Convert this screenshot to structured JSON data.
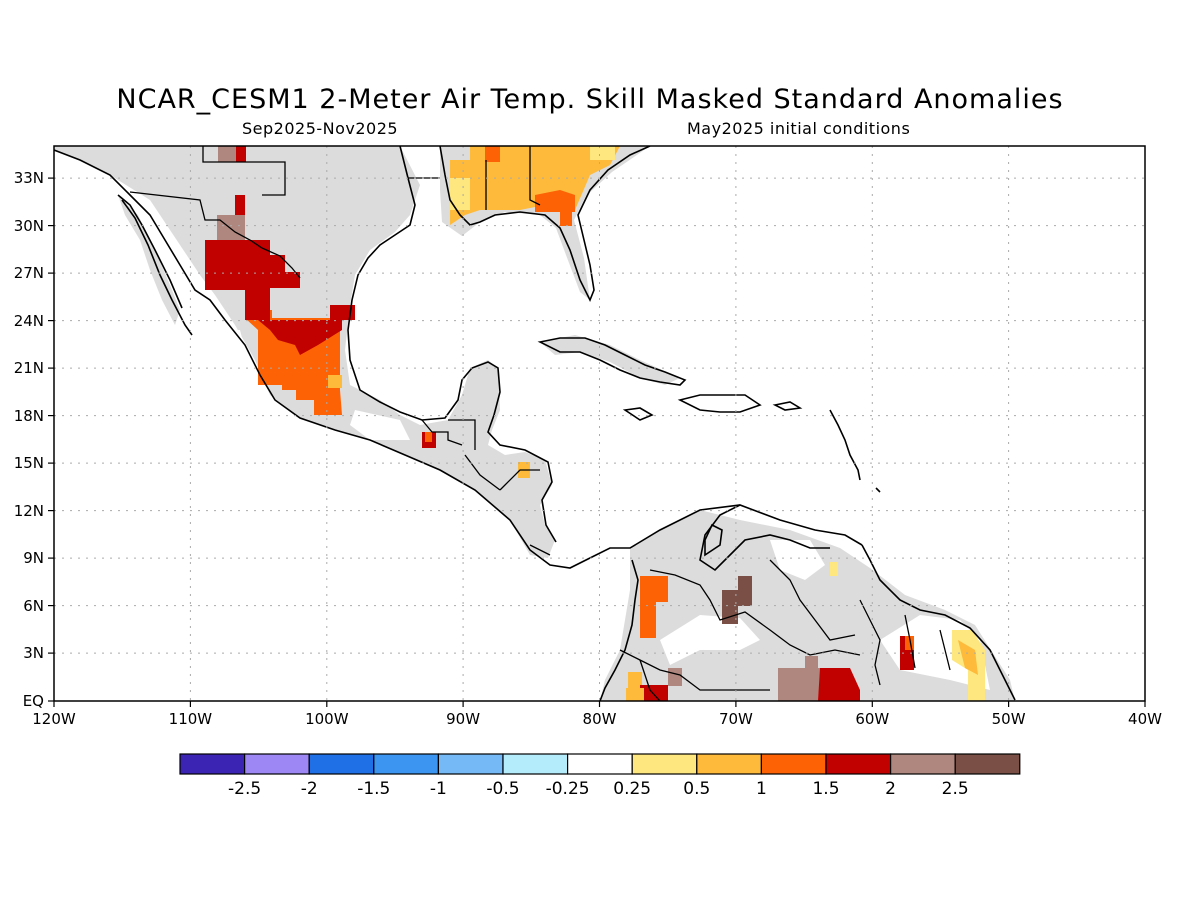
{
  "title": "NCAR_CESM1 2-Meter Air Temp. Skill Masked Standard Anomalies",
  "period": "Sep2025-Nov2025",
  "init": "May2025 initial conditions",
  "lat_labels": [
    "33N",
    "30N",
    "27N",
    "24N",
    "21N",
    "18N",
    "15N",
    "12N",
    "9N",
    "6N",
    "3N",
    "EQ"
  ],
  "lon_labels": [
    "120W",
    "110W",
    "100W",
    "90W",
    "80W",
    "70W",
    "60W",
    "50W",
    "40W"
  ],
  "colorbar": {
    "colors": [
      "#3b24b3",
      "#9d87f5",
      "#1f6fe6",
      "#3d95f2",
      "#75b9f7",
      "#b5ecfb",
      "#ffffff",
      "#fee77e",
      "#fdba3b",
      "#fd6204",
      "#c10000",
      "#b0877e",
      "#7a5046"
    ],
    "labels": [
      "-2.5",
      "-2",
      "-1.5",
      "-1",
      "-0.5",
      "-0.25",
      "0.25",
      "0.5",
      "1",
      "1.5",
      "2",
      "2.5"
    ]
  },
  "colors": {
    "masked": "#dcdcdc",
    "p05": "#fee77e",
    "p1": "#fdba3b",
    "p15": "#fd6204",
    "p2": "#c10000",
    "p25": "#b0877e",
    "p3": "#7a5046"
  }
}
